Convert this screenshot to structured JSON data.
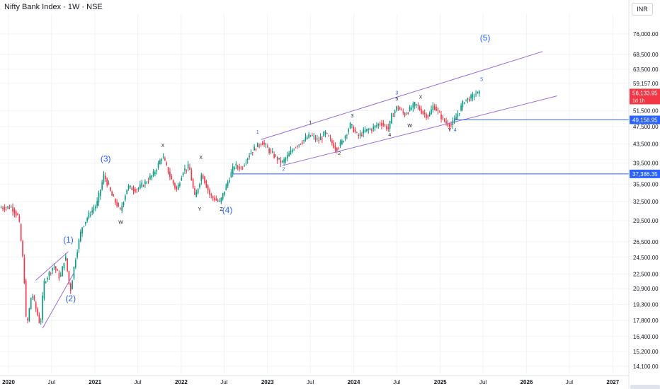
{
  "header": {
    "title": "Nifty Bank Index · 1W · NSE",
    "currency": "INR"
  },
  "price_scale": {
    "ticks": [
      76000,
      68500,
      63500,
      59157,
      51500,
      47500,
      43500,
      39500,
      35500,
      32500,
      29500,
      26500,
      24500,
      22500,
      20900,
      19300,
      17800,
      16400,
      15200,
      14100
    ],
    "tick_labels": [
      "76,000.00",
      "68,500.00",
      "63,500.00",
      "59,157.00",
      "51,500.00",
      "47,500.00",
      "43,500.00",
      "39,500.00",
      "35,500.00",
      "32,500.00",
      "29,500.00",
      "26,500.00",
      "24,500.00",
      "22,500.00",
      "20,900.00",
      "19,300.00",
      "17,800.00",
      "16,400.00",
      "15,200.00",
      "14,100.00"
    ],
    "scale": "log",
    "range": [
      13600,
      84000
    ]
  },
  "time_scale": {
    "ticks": [
      "2020-01-01",
      "2020-07-01",
      "2021-01-01",
      "2021-07-01",
      "2022-01-01",
      "2022-07-01",
      "2023-01-01",
      "2023-07-01",
      "2024-01-01",
      "2024-07-01",
      "2025-01-01",
      "2025-07-01",
      "2026-01-01",
      "2026-07-01",
      "2027-01-01"
    ],
    "tick_labels": [
      "2020",
      "Jul",
      "2021",
      "Jul",
      "2022",
      "Jul",
      "2023",
      "Jul",
      "2024",
      "Jul",
      "2025",
      "Jul",
      "2026",
      "Jul",
      "2027"
    ],
    "range": [
      "2019-11-26",
      "2027-03-10"
    ]
  },
  "price_badges": [
    {
      "value": "56,133.95",
      "sub": "1d 1h",
      "price": 56134,
      "color": "#f23645"
    },
    {
      "value": "49,156.95",
      "price": 49157,
      "color": "#2962ff"
    },
    {
      "value": "37,386.35",
      "price": 37386,
      "color": "#2962ff"
    }
  ],
  "colors": {
    "up": "#089981",
    "down": "#f23645",
    "channel": "#9c6ade",
    "level": "#2962ff",
    "wave_blue": "#2962ff",
    "wave_dark": "#131722"
  },
  "chart_data": {
    "type": "candlestick",
    "instrument": "Nifty Bank Index",
    "interval": "1W",
    "exchange": "NSE",
    "price_path": [
      [
        "2019-12-01",
        31500
      ],
      [
        "2020-01-20",
        31600
      ],
      [
        "2020-02-20",
        30000
      ],
      [
        "2020-03-13",
        23000
      ],
      [
        "2020-03-24",
        17000
      ],
      [
        "2020-04-15",
        20500
      ],
      [
        "2020-05-22",
        17300
      ],
      [
        "2020-06-05",
        21500
      ],
      [
        "2020-06-26",
        22500
      ],
      [
        "2020-07-17",
        23500
      ],
      [
        "2020-08-14",
        22000
      ],
      [
        "2020-09-04",
        24800
      ],
      [
        "2020-09-25",
        20500
      ],
      [
        "2020-10-16",
        24200
      ],
      [
        "2020-11-13",
        28500
      ],
      [
        "2020-12-15",
        30500
      ],
      [
        "2021-01-15",
        32000
      ],
      [
        "2021-02-15",
        37200
      ],
      [
        "2021-03-20",
        33500
      ],
      [
        "2021-04-25",
        31000
      ],
      [
        "2021-05-25",
        35000
      ],
      [
        "2021-07-01",
        34500
      ],
      [
        "2021-08-10",
        35800
      ],
      [
        "2021-09-15",
        37500
      ],
      [
        "2021-10-20",
        41000
      ],
      [
        "2021-11-25",
        36500
      ],
      [
        "2021-12-20",
        34400
      ],
      [
        "2022-01-15",
        38000
      ],
      [
        "2022-02-10",
        38800
      ],
      [
        "2022-03-07",
        33000
      ],
      [
        "2022-04-05",
        37500
      ],
      [
        "2022-05-10",
        33500
      ],
      [
        "2022-06-20",
        32300
      ],
      [
        "2022-07-20",
        35500
      ],
      [
        "2022-08-20",
        39000
      ],
      [
        "2022-09-20",
        38500
      ],
      [
        "2022-10-25",
        41500
      ],
      [
        "2022-11-20",
        42800
      ],
      [
        "2022-12-15",
        44000
      ],
      [
        "2023-01-25",
        41500
      ],
      [
        "2023-03-10",
        39500
      ],
      [
        "2023-04-05",
        41000
      ],
      [
        "2023-05-01",
        42800
      ],
      [
        "2023-06-01",
        44000
      ],
      [
        "2023-07-10",
        45500
      ],
      [
        "2023-08-10",
        44200
      ],
      [
        "2023-09-10",
        46000
      ],
      [
        "2023-10-25",
        42400
      ],
      [
        "2023-11-20",
        44000
      ],
      [
        "2023-12-25",
        48000
      ],
      [
        "2024-01-25",
        45200
      ],
      [
        "2024-02-25",
        46500
      ],
      [
        "2024-03-25",
        47000
      ],
      [
        "2024-05-01",
        48500
      ],
      [
        "2024-06-04",
        46900
      ],
      [
        "2024-06-15",
        50000
      ],
      [
        "2024-07-10",
        52600
      ],
      [
        "2024-08-10",
        50500
      ],
      [
        "2024-09-25",
        53300
      ],
      [
        "2024-10-25",
        51000
      ],
      [
        "2024-11-20",
        50000
      ],
      [
        "2024-12-10",
        53000
      ],
      [
        "2025-01-05",
        50500
      ],
      [
        "2025-01-30",
        48500
      ],
      [
        "2025-02-25",
        47800
      ],
      [
        "2025-03-30",
        51500
      ],
      [
        "2025-04-20",
        54300
      ],
      [
        "2025-05-20",
        55000
      ],
      [
        "2025-06-05",
        56200
      ],
      [
        "2025-06-15",
        56134
      ]
    ],
    "last_price": 56133.95,
    "levels": [
      49156.95,
      37386.35
    ],
    "channels": [
      {
        "from": [
          "2022-12-05",
          44500
        ],
        "to": [
          "2026-03-10",
          69500
        ]
      },
      {
        "from": [
          "2023-03-05",
          39000
        ],
        "to": [
          "2026-05-10",
          55500
        ]
      },
      {
        "from": [
          "2020-04-25",
          21800
        ],
        "to": [
          "2020-09-10",
          25200
        ]
      },
      {
        "from": [
          "2020-05-24",
          17100
        ],
        "to": [
          "2020-10-05",
          22700
        ]
      }
    ],
    "wave_labels": [
      {
        "text": "(1)",
        "at": [
          "2020-09-10",
          26400
        ],
        "color": "blue",
        "size": "large"
      },
      {
        "text": "(2)",
        "at": [
          "2020-09-20",
          19600
        ],
        "color": "blue",
        "size": "large"
      },
      {
        "text": "(3)",
        "at": [
          "2021-02-15",
          39800
        ],
        "color": "blue",
        "size": "large"
      },
      {
        "text": "(4)",
        "at": [
          "2022-07-15",
          30700
        ],
        "color": "blue",
        "size": "large"
      },
      {
        "text": "(5)",
        "at": [
          "2025-07-10",
          73500
        ],
        "color": "blue",
        "size": "large"
      },
      {
        "text": "W",
        "at": [
          "2021-04-20",
          29000
        ],
        "color": "dark",
        "size": "small"
      },
      {
        "text": "X",
        "at": [
          "2021-10-15",
          42800
        ],
        "color": "dark",
        "size": "small"
      },
      {
        "text": "X",
        "at": [
          "2022-03-25",
          40300
        ],
        "color": "dark",
        "size": "small"
      },
      {
        "text": "Y",
        "at": [
          "2022-03-20",
          31000
        ],
        "color": "dark",
        "size": "small"
      },
      {
        "text": "Z",
        "at": [
          "2022-06-20",
          31000
        ],
        "color": "dark",
        "size": "small"
      },
      {
        "text": "1",
        "at": [
          "2022-11-20",
          45800
        ],
        "color": "blue",
        "size": "small"
      },
      {
        "text": "2",
        "at": [
          "2023-03-10",
          38000
        ],
        "color": "blue",
        "size": "small"
      },
      {
        "text": "1",
        "at": [
          "2023-07-01",
          48100
        ],
        "color": "dark",
        "size": "small"
      },
      {
        "text": "2",
        "at": [
          "2023-11-01",
          41200
        ],
        "color": "dark",
        "size": "small"
      },
      {
        "text": "3",
        "at": [
          "2023-12-25",
          49800
        ],
        "color": "dark",
        "size": "small"
      },
      {
        "text": "4",
        "at": [
          "2024-06-01",
          45200
        ],
        "color": "dark",
        "size": "small"
      },
      {
        "text": "3",
        "at": [
          "2024-07-01",
          55900
        ],
        "color": "blue",
        "size": "small"
      },
      {
        "text": "5",
        "at": [
          "2024-07-01",
          54200
        ],
        "color": "dark",
        "size": "small"
      },
      {
        "text": "W",
        "at": [
          "2024-08-25",
          47300
        ],
        "color": "dark",
        "size": "small"
      },
      {
        "text": "X",
        "at": [
          "2024-10-10",
          54700
        ],
        "color": "dark",
        "size": "small"
      },
      {
        "text": "Y",
        "at": [
          "2025-02-10",
          46300
        ],
        "color": "dark",
        "size": "small"
      },
      {
        "text": "4",
        "at": [
          "2025-03-05",
          46300
        ],
        "color": "blue",
        "size": "small"
      },
      {
        "text": "5",
        "at": [
          "2025-06-25",
          59900
        ],
        "color": "blue",
        "size": "small"
      }
    ]
  }
}
